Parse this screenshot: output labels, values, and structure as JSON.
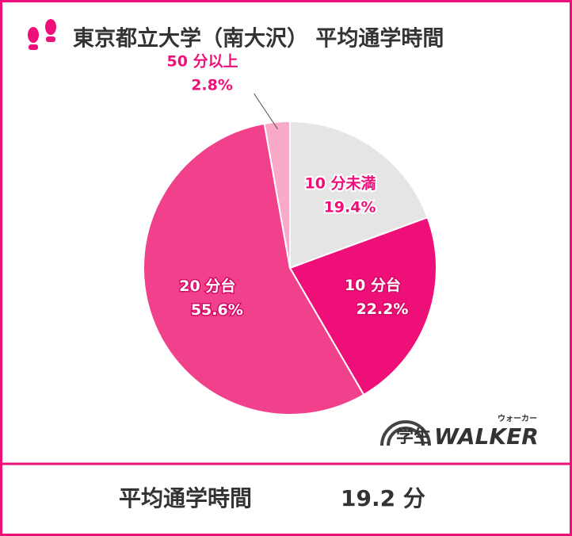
{
  "chart_data": {
    "type": "pie",
    "title": "東京都立大学（南大沢） 平均通学時間",
    "categories": [
      "10 分未満",
      "10 分台",
      "20 分台",
      "50 分以上"
    ],
    "values": [
      19.4,
      22.2,
      55.6,
      2.8
    ],
    "value_labels": [
      "19.4%",
      "22.2%",
      "55.6%",
      "2.8%"
    ],
    "colors": [
      "#e5e5e5",
      "#ee0f78",
      "#f2418c",
      "#f9aac9"
    ]
  },
  "summary": {
    "label": "平均通学時間",
    "value": "19.2 分"
  },
  "logo": {
    "text": "学生",
    "brand": "WALKER",
    "reading": "ウォーカー"
  }
}
